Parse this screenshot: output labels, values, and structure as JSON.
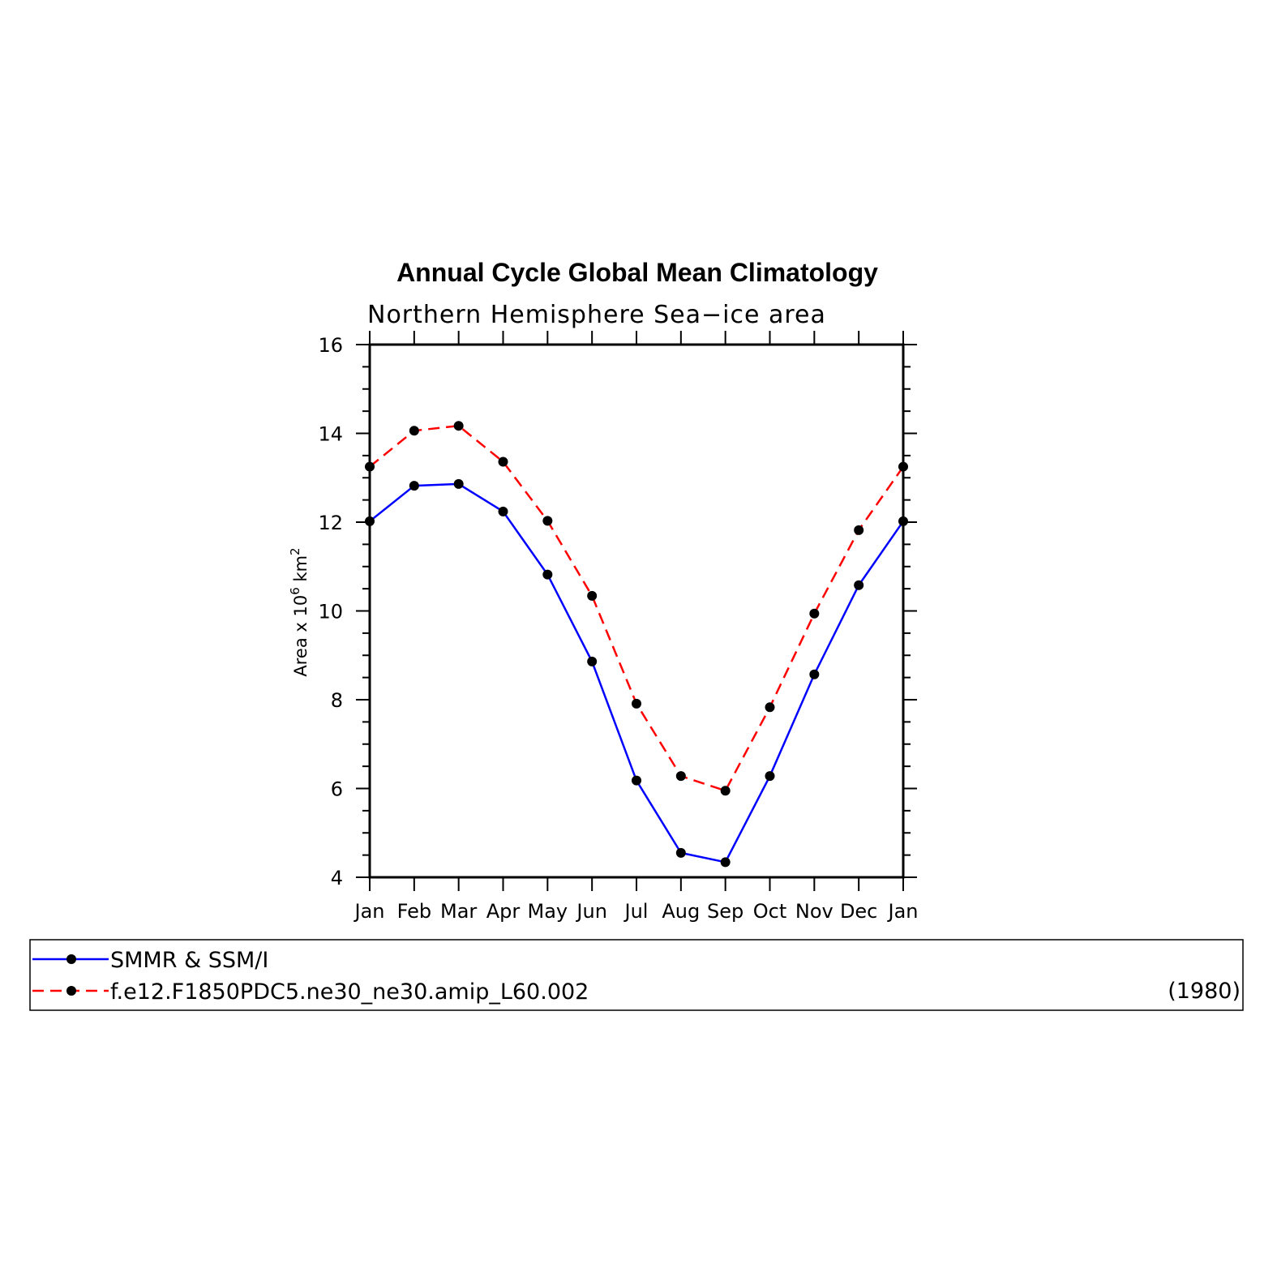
{
  "chart_data": {
    "type": "line",
    "title": "Annual Cycle Global Mean Climatology",
    "subtitle": "Northern Hemisphere Sea−ice area",
    "ylabel_parts": {
      "base": "Area x 10",
      "sup1": "6",
      "mid": " km",
      "sup2": "2"
    },
    "categories": [
      "Jan",
      "Feb",
      "Mar",
      "Apr",
      "May",
      "Jun",
      "Jul",
      "Aug",
      "Sep",
      "Oct",
      "Nov",
      "Dec",
      "Jan"
    ],
    "ylim": [
      4,
      16
    ],
    "yticks": [
      4,
      6,
      8,
      10,
      12,
      14,
      16
    ],
    "series": [
      {
        "name": "SMMR & SSM/I",
        "color": "#0000ff",
        "dash": "solid",
        "values": [
          12.02,
          12.82,
          12.86,
          12.24,
          10.82,
          8.86,
          6.18,
          4.55,
          4.34,
          6.28,
          8.57,
          10.58,
          12.02
        ]
      },
      {
        "name": "f.e12.F1850PDC5.ne30_ne30.amip_L60.002",
        "color": "#ff0000",
        "dash": "dashed",
        "values": [
          13.25,
          14.06,
          14.17,
          13.36,
          12.03,
          10.34,
          7.91,
          6.28,
          5.95,
          7.83,
          9.94,
          11.82,
          13.25
        ]
      }
    ],
    "legend_note": "(1980)",
    "legend_position": "bottom"
  }
}
